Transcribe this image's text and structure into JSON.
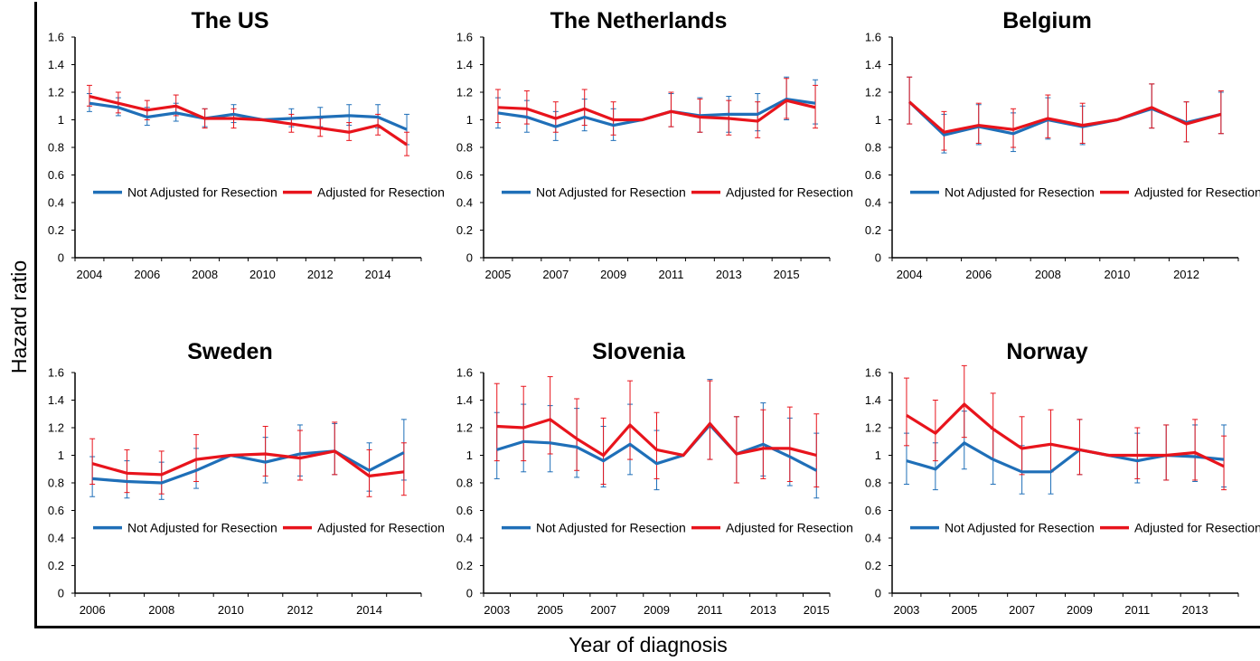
{
  "figure": {
    "y_axis_label": "Hazard ratio",
    "x_axis_label": "Year of diagnosis"
  },
  "colors": {
    "not_adjusted": "#1f6fb8",
    "adjusted": "#e8141c",
    "axis": "#000000"
  },
  "chart_data": [
    {
      "type": "line",
      "title": "The US",
      "x": [
        2004,
        2005,
        2006,
        2007,
        2008,
        2009,
        2010,
        2011,
        2012,
        2013,
        2014,
        2015
      ],
      "x_tick_labels": [
        "2004",
        "2006",
        "2008",
        "2010",
        "2012",
        "2014"
      ],
      "ylim": [
        0,
        1.6
      ],
      "y_tick_labels": [
        "0",
        "0.2",
        "0.4",
        "0.6",
        "0.8",
        "1",
        "1.2",
        "1.4",
        "1.6"
      ],
      "legend": "bottom",
      "grid": false,
      "series": [
        {
          "name": "Not Adjusted for Resection",
          "values": [
            1.12,
            1.09,
            1.02,
            1.05,
            1.01,
            1.04,
            1.0,
            1.01,
            1.02,
            1.03,
            1.02,
            0.93
          ],
          "lower": [
            1.06,
            1.03,
            0.96,
            0.99,
            0.95,
            0.98,
            1.0,
            0.95,
            0.95,
            0.96,
            0.94,
            0.82
          ],
          "upper": [
            1.19,
            1.16,
            1.09,
            1.12,
            1.08,
            1.11,
            1.0,
            1.08,
            1.09,
            1.11,
            1.11,
            1.04
          ]
        },
        {
          "name": "Adjusted for Resection",
          "values": [
            1.17,
            1.12,
            1.07,
            1.1,
            1.01,
            1.01,
            1.0,
            0.97,
            0.94,
            0.91,
            0.96,
            0.82
          ],
          "lower": [
            1.1,
            1.05,
            1.0,
            1.03,
            0.94,
            0.94,
            1.0,
            0.91,
            0.88,
            0.85,
            0.89,
            0.74
          ],
          "upper": [
            1.25,
            1.2,
            1.14,
            1.18,
            1.08,
            1.08,
            1.0,
            1.04,
            1.01,
            0.98,
            1.04,
            0.91
          ]
        }
      ]
    },
    {
      "type": "line",
      "title": "The Netherlands",
      "x": [
        2005,
        2006,
        2007,
        2008,
        2009,
        2010,
        2011,
        2012,
        2013,
        2014,
        2015,
        2016
      ],
      "x_tick_labels": [
        "2005",
        "2007",
        "2009",
        "2011",
        "2013",
        "2015"
      ],
      "ylim": [
        0,
        1.6
      ],
      "y_tick_labels": [
        "0",
        "0.2",
        "0.4",
        "0.6",
        "0.8",
        "1",
        "1.2",
        "1.4",
        "1.6"
      ],
      "legend": "bottom",
      "grid": false,
      "series": [
        {
          "name": "Not Adjusted for Resection",
          "values": [
            1.05,
            1.02,
            0.95,
            1.02,
            0.96,
            1.0,
            1.06,
            1.03,
            1.04,
            1.04,
            1.15,
            1.12
          ],
          "lower": [
            0.94,
            0.91,
            0.85,
            0.92,
            0.85,
            1.0,
            0.95,
            0.91,
            0.91,
            0.92,
            1.0,
            0.97
          ],
          "upper": [
            1.16,
            1.14,
            1.06,
            1.15,
            1.08,
            1.0,
            1.19,
            1.16,
            1.17,
            1.19,
            1.31,
            1.29
          ]
        },
        {
          "name": "Adjusted for Resection",
          "values": [
            1.09,
            1.08,
            1.01,
            1.08,
            1.0,
            1.0,
            1.06,
            1.02,
            1.01,
            0.99,
            1.14,
            1.09
          ],
          "lower": [
            0.98,
            0.97,
            0.91,
            0.96,
            0.89,
            1.0,
            0.95,
            0.91,
            0.89,
            0.87,
            1.01,
            0.94
          ],
          "upper": [
            1.22,
            1.21,
            1.13,
            1.22,
            1.13,
            1.0,
            1.2,
            1.15,
            1.14,
            1.13,
            1.3,
            1.25
          ]
        }
      ]
    },
    {
      "type": "line",
      "title": "Belgium",
      "x": [
        2004,
        2005,
        2006,
        2007,
        2008,
        2009,
        2010,
        2011,
        2012,
        2013
      ],
      "x_tick_labels": [
        "2004",
        "2006",
        "2008",
        "2010",
        "2012"
      ],
      "ylim": [
        0,
        1.6
      ],
      "y_tick_labels": [
        "0",
        "0.2",
        "0.4",
        "0.6",
        "0.8",
        "1",
        "1.2",
        "1.4",
        "1.6"
      ],
      "legend": "bottom",
      "grid": false,
      "series": [
        {
          "name": "Not Adjusted for Resection",
          "values": [
            1.13,
            0.89,
            0.95,
            0.9,
            1.0,
            0.95,
            1.0,
            1.08,
            0.98,
            1.04
          ],
          "lower": [
            0.97,
            0.76,
            0.82,
            0.77,
            0.86,
            0.82,
            1.0,
            0.94,
            0.84,
            0.9
          ],
          "upper": [
            1.31,
            1.04,
            1.11,
            1.05,
            1.16,
            1.1,
            1.0,
            1.26,
            1.13,
            1.2
          ]
        },
        {
          "name": "Adjusted for Resection",
          "values": [
            1.13,
            0.91,
            0.96,
            0.93,
            1.01,
            0.96,
            1.0,
            1.09,
            0.97,
            1.04
          ],
          "lower": [
            0.97,
            0.78,
            0.83,
            0.8,
            0.87,
            0.83,
            1.0,
            0.94,
            0.84,
            0.9
          ],
          "upper": [
            1.31,
            1.06,
            1.12,
            1.08,
            1.18,
            1.12,
            1.0,
            1.26,
            1.13,
            1.21
          ]
        }
      ]
    },
    {
      "type": "line",
      "title": "Sweden",
      "x": [
        2006,
        2007,
        2008,
        2009,
        2010,
        2011,
        2012,
        2013,
        2014,
        2015
      ],
      "x_tick_labels": [
        "2006",
        "2008",
        "2010",
        "2012",
        "2014"
      ],
      "ylim": [
        0,
        1.6
      ],
      "y_tick_labels": [
        "0",
        "0.2",
        "0.4",
        "0.6",
        "0.8",
        "1",
        "1.2",
        "1.4",
        "1.6"
      ],
      "legend": "bottom",
      "grid": false,
      "series": [
        {
          "name": "Not Adjusted for Resection",
          "values": [
            0.83,
            0.81,
            0.8,
            0.89,
            1.0,
            0.95,
            1.01,
            1.03,
            0.89,
            1.02
          ],
          "lower": [
            0.7,
            0.69,
            0.68,
            0.76,
            1.0,
            0.8,
            0.85,
            0.86,
            0.74,
            0.82
          ],
          "upper": [
            0.99,
            0.96,
            0.95,
            1.05,
            1.0,
            1.13,
            1.22,
            1.23,
            1.09,
            1.26
          ]
        },
        {
          "name": "Adjusted for Resection",
          "values": [
            0.94,
            0.87,
            0.86,
            0.97,
            1.0,
            1.01,
            0.98,
            1.03,
            0.85,
            0.88
          ],
          "lower": [
            0.79,
            0.73,
            0.72,
            0.81,
            1.0,
            0.85,
            0.82,
            0.86,
            0.7,
            0.71
          ],
          "upper": [
            1.12,
            1.04,
            1.03,
            1.15,
            1.0,
            1.21,
            1.18,
            1.24,
            1.04,
            1.09
          ]
        }
      ]
    },
    {
      "type": "line",
      "title": "Slovenia",
      "x": [
        2003,
        2004,
        2005,
        2006,
        2007,
        2008,
        2009,
        2010,
        2011,
        2012,
        2013,
        2014,
        2015
      ],
      "x_tick_labels": [
        "2003",
        "2005",
        "2007",
        "2009",
        "2011",
        "2013",
        "2015"
      ],
      "ylim": [
        0,
        1.6
      ],
      "y_tick_labels": [
        "0",
        "0.2",
        "0.4",
        "0.6",
        "0.8",
        "1",
        "1.2",
        "1.4",
        "1.6"
      ],
      "legend": "bottom",
      "grid": false,
      "series": [
        {
          "name": "Not Adjusted for Resection",
          "values": [
            1.04,
            1.1,
            1.09,
            1.06,
            0.96,
            1.08,
            0.94,
            1.0,
            1.22,
            1.01,
            1.08,
            0.99,
            0.89
          ],
          "lower": [
            0.83,
            0.88,
            0.88,
            0.84,
            0.77,
            0.86,
            0.75,
            1.0,
            0.97,
            0.8,
            0.85,
            0.78,
            0.69
          ],
          "upper": [
            1.31,
            1.37,
            1.36,
            1.34,
            1.21,
            1.37,
            1.18,
            1.0,
            1.55,
            1.28,
            1.38,
            1.27,
            1.16
          ]
        },
        {
          "name": "Adjusted for Resection",
          "values": [
            1.21,
            1.2,
            1.26,
            1.12,
            1.0,
            1.22,
            1.04,
            1.0,
            1.23,
            1.01,
            1.05,
            1.05,
            1.0
          ],
          "lower": [
            0.96,
            0.96,
            1.01,
            0.89,
            0.79,
            0.97,
            0.83,
            1.0,
            0.97,
            0.8,
            0.83,
            0.81,
            0.77
          ],
          "upper": [
            1.52,
            1.5,
            1.57,
            1.41,
            1.27,
            1.54,
            1.31,
            1.0,
            1.54,
            1.28,
            1.33,
            1.35,
            1.3
          ]
        }
      ]
    },
    {
      "type": "line",
      "title": "Norway",
      "x": [
        2003,
        2004,
        2005,
        2006,
        2007,
        2008,
        2009,
        2010,
        2011,
        2012,
        2013,
        2014
      ],
      "x_tick_labels": [
        "2003",
        "2005",
        "2007",
        "2009",
        "2011",
        "2013"
      ],
      "ylim": [
        0,
        1.6
      ],
      "y_tick_labels": [
        "0",
        "0.2",
        "0.4",
        "0.6",
        "0.8",
        "1",
        "1.2",
        "1.4",
        "1.6"
      ],
      "legend": "bottom",
      "grid": false,
      "series": [
        {
          "name": "Not Adjusted for Resection",
          "values": [
            0.96,
            0.9,
            1.09,
            0.97,
            0.88,
            0.88,
            1.04,
            1.0,
            0.96,
            1.0,
            0.99,
            0.97
          ],
          "lower": [
            0.79,
            0.75,
            0.9,
            0.79,
            0.72,
            0.72,
            0.86,
            1.0,
            0.8,
            0.82,
            0.81,
            0.77
          ],
          "upper": [
            1.16,
            1.09,
            1.32,
            1.19,
            1.07,
            1.08,
            1.26,
            1.0,
            1.16,
            1.22,
            1.22,
            1.22
          ]
        },
        {
          "name": "Adjusted for Resection",
          "values": [
            1.29,
            1.16,
            1.37,
            1.19,
            1.05,
            1.08,
            1.04,
            1.0,
            1.0,
            1.0,
            1.02,
            0.92
          ],
          "lower": [
            1.07,
            0.96,
            1.13,
            0.97,
            0.86,
            0.88,
            0.86,
            1.0,
            0.83,
            0.82,
            0.82,
            0.75
          ],
          "upper": [
            1.56,
            1.4,
            1.65,
            1.45,
            1.28,
            1.33,
            1.26,
            1.0,
            1.2,
            1.22,
            1.26,
            1.14
          ]
        }
      ]
    }
  ]
}
